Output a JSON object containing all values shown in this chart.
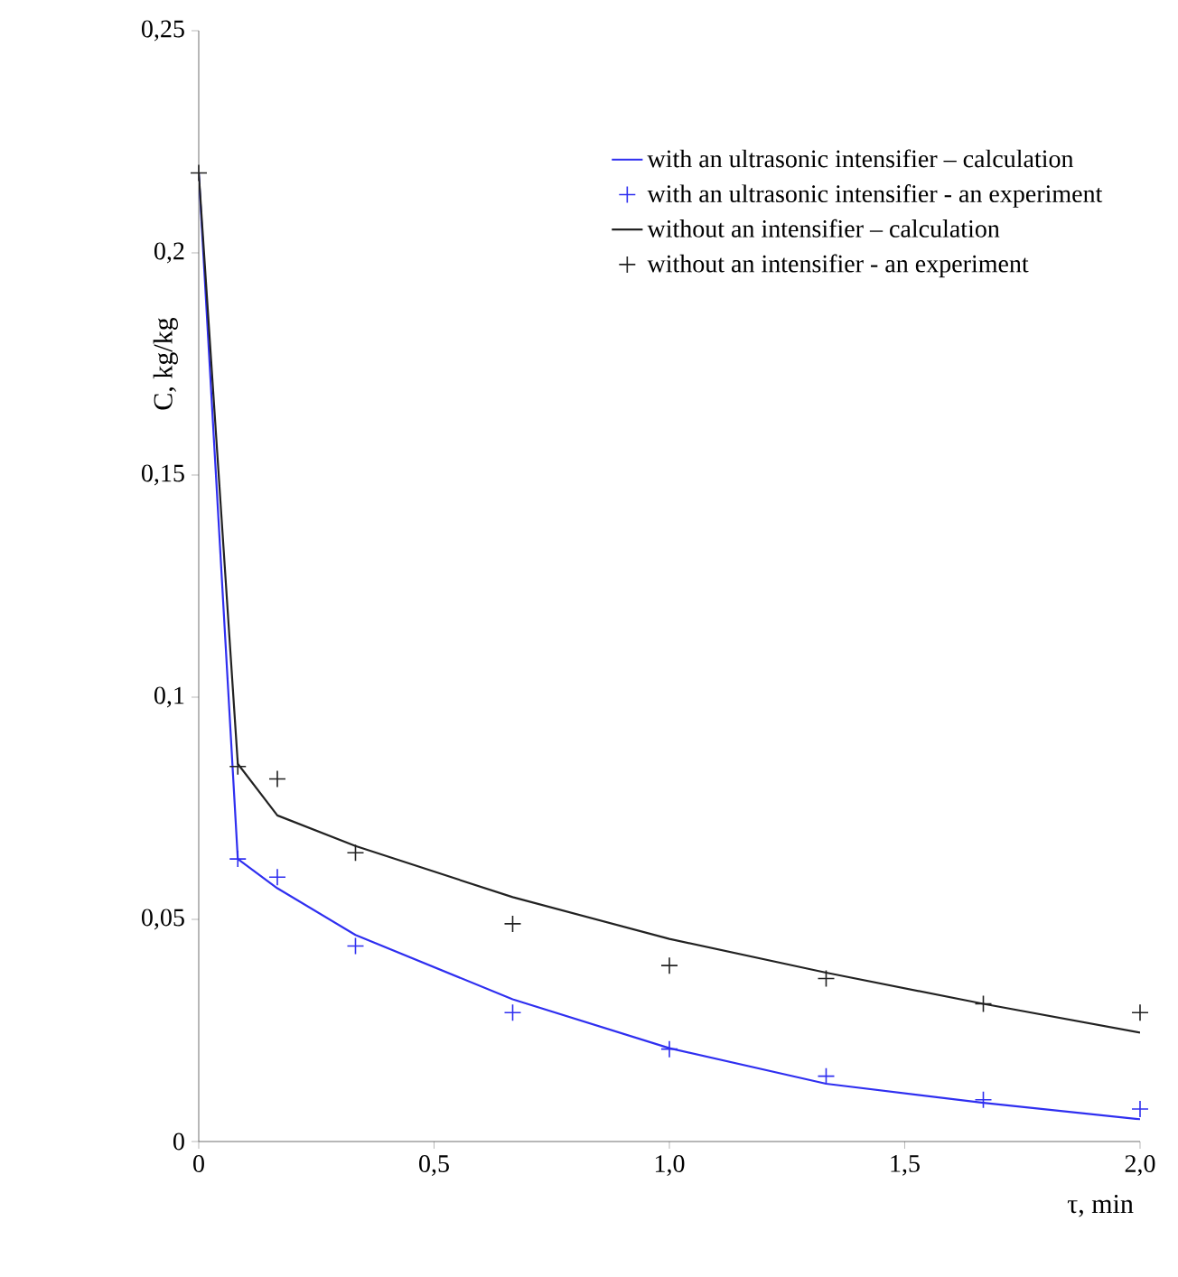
{
  "chart_data": {
    "type": "line",
    "xlabel": "τ, min",
    "ylabel": "C, kg/kg",
    "xlim": [
      0,
      2
    ],
    "ylim": [
      0,
      0.25
    ],
    "xticks": [
      0,
      {
        "value": 0.5,
        "label": "0,5"
      },
      {
        "value": 1,
        "label": "1,0"
      },
      {
        "value": 1.5,
        "label": "1,5"
      },
      {
        "value": 2,
        "label": "2,0"
      }
    ],
    "yticks": [
      0,
      {
        "value": 0.05,
        "label": "0,05"
      },
      {
        "value": 0.1,
        "label": "0,1"
      },
      {
        "value": 0.15,
        "label": "0,15"
      },
      {
        "value": 0.2,
        "label": "0,2"
      },
      {
        "value": 0.25,
        "label": "0,25"
      }
    ],
    "grid": false,
    "legend": "top right",
    "series": [
      {
        "name": "with an ultrasonic intensifier – calculation",
        "marker": "none",
        "color": "#2f2ff0",
        "x": [
          0,
          0.083,
          0.167,
          0.333,
          0.667,
          1.0,
          1.333,
          1.667,
          2.0
        ],
        "values": [
          0.218,
          0.0636,
          0.057,
          0.0465,
          0.032,
          0.021,
          0.013,
          0.0087,
          0.005
        ]
      },
      {
        "name": "with an ultrasonic intensifier - an experiment",
        "type": "scatter",
        "marker": "cross",
        "color": "#2f2ff0",
        "x": [
          0.083,
          0.167,
          0.333,
          0.667,
          1.0,
          1.333,
          1.667,
          2.0
        ],
        "values": [
          0.0636,
          0.0595,
          0.044,
          0.029,
          0.0208,
          0.0147,
          0.0094,
          0.0073
        ]
      },
      {
        "name": "without an intensifier – calculation",
        "marker": "none",
        "color": "#222222",
        "x": [
          0,
          0.083,
          0.167,
          0.333,
          0.667,
          1.0,
          1.333,
          1.667,
          2.0
        ],
        "values": [
          0.218,
          0.085,
          0.0734,
          0.0665,
          0.055,
          0.0456,
          0.038,
          0.031,
          0.0245
        ]
      },
      {
        "name": "without an intensifier - an experiment",
        "type": "scatter",
        "marker": "cross",
        "color": "#222222",
        "x": [
          0,
          0.083,
          0.167,
          0.333,
          0.667,
          1.0,
          1.333,
          1.667,
          2.0
        ],
        "values": [
          0.218,
          0.0844,
          0.0816,
          0.065,
          0.049,
          0.0396,
          0.0367,
          0.031,
          0.029
        ]
      }
    ]
  }
}
